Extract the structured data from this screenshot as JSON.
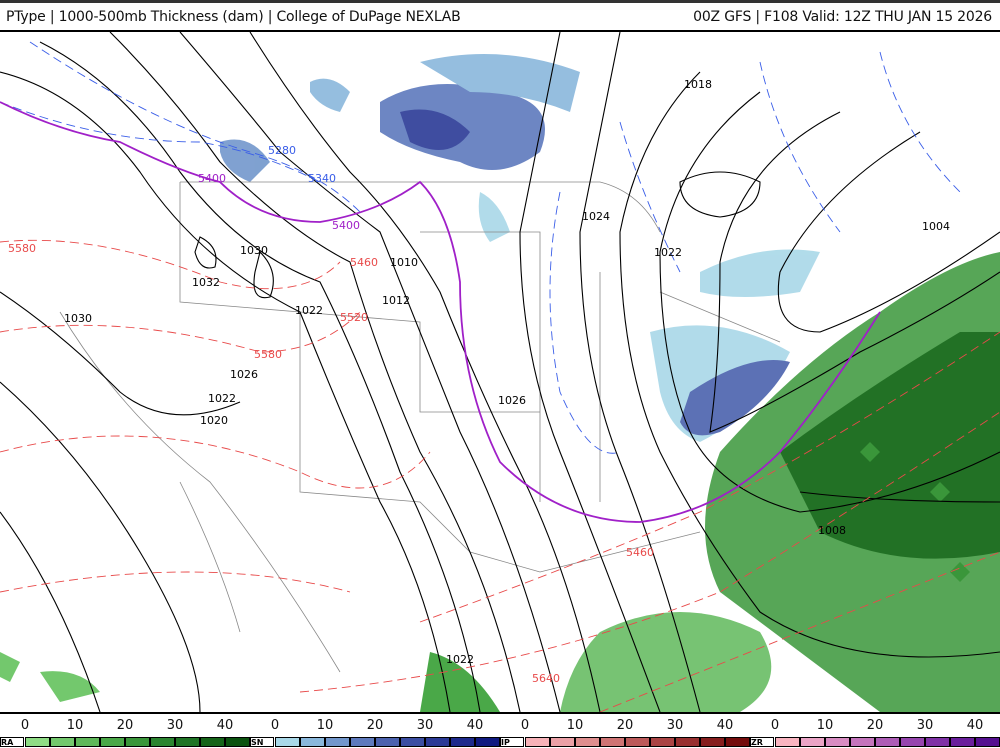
{
  "header": {
    "left": "PType | 1000-500mb Thickness (dam) | College of DuPage NEXLAB",
    "right": "00Z GFS | F108 Valid: 12Z THU JAN 15 2026"
  },
  "isobar_labels": [
    "1018",
    "1024",
    "1022",
    "1004",
    "1030",
    "1032",
    "1010",
    "1012",
    "1022",
    "1026",
    "1026",
    "1022",
    "1020",
    "1030",
    "1008",
    "1022"
  ],
  "thickness_labels": [
    "5280",
    "5340",
    "5400",
    "5400",
    "5460",
    "5520",
    "5580",
    "5580",
    "5460",
    "5640"
  ],
  "colors": {
    "isobar": "#000000",
    "thickness_cold": "#3a5ee8",
    "thickness_warm": "#e84a4a",
    "thickness_5400": "#a020c8"
  },
  "legend": {
    "ticks": [
      "0",
      "10",
      "20",
      "30",
      "40"
    ],
    "sections": [
      {
        "label": "RA",
        "colors": [
          "#8fdc85",
          "#73c86d",
          "#5fb85a",
          "#4aa848",
          "#3a963a",
          "#2b8530",
          "#1f7425",
          "#156419",
          "#0b520f"
        ]
      },
      {
        "label": "SN",
        "colors": [
          "#a9d8e8",
          "#8ab8dc",
          "#7297cc",
          "#5e7abd",
          "#4b62ae",
          "#3b4ea2",
          "#2b3a96",
          "#1e2a8c",
          "#101a80"
        ]
      },
      {
        "label": "IP",
        "colors": [
          "#f7b2b8",
          "#eba0a6",
          "#df8e8e",
          "#cf7474",
          "#bc5a5a",
          "#aa4444",
          "#983030",
          "#861e1e",
          "#740d0d"
        ]
      },
      {
        "label": "ZR",
        "colors": [
          "#f9b4c0",
          "#eba4c6",
          "#d88cc2",
          "#c474bc",
          "#ad5db6",
          "#9645ae",
          "#7f32a6",
          "#6a1f9c",
          "#551090"
        ]
      }
    ]
  }
}
